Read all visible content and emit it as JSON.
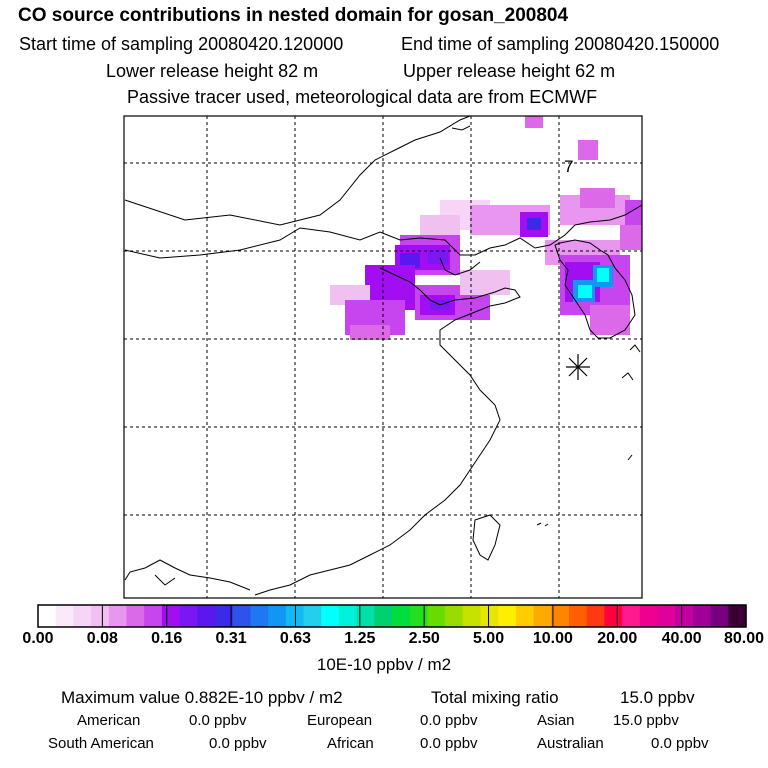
{
  "header": {
    "title": "CO  source contributions in nested domain for gosan_200804",
    "start_time": "Start time of sampling 20080420.120000",
    "end_time": "End time of sampling 20080420.150000",
    "lower_release": "Lower release height   82 m",
    "upper_release": "Upper release height   62 m",
    "tracer_note": "Passive tracer used, meteorological data are from ECMWF"
  },
  "map": {
    "marker_label": "7",
    "receptor_symbol": "asterisk"
  },
  "colorbar": {
    "colors": [
      "#ffffff",
      "#fbe9fb",
      "#f6d5f6",
      "#f0c0f0",
      "#e896ef",
      "#dc6ae8",
      "#c645ef",
      "#a10ef2",
      "#7a17f5",
      "#5b17f0",
      "#3a2be8",
      "#2f52ea",
      "#1e78f0",
      "#1296f3",
      "#14b8f2",
      "#22d0ee",
      "#00ffff",
      "#00f0d8",
      "#00e0a8",
      "#00d070",
      "#00dd3c",
      "#22e020",
      "#66dd00",
      "#99dd00",
      "#c8e200",
      "#e8e600",
      "#ffee00",
      "#ffcc00",
      "#ffaa00",
      "#ff8400",
      "#ff5f00",
      "#ff3a10",
      "#ff0040",
      "#ff1a90",
      "#f00090",
      "#e0009c",
      "#c400a0",
      "#a10098",
      "#780080",
      "#3a0035"
    ],
    "tick_labels": [
      "0.00",
      "0.08",
      "0.16",
      "0.31",
      "0.63",
      "1.25",
      "2.50",
      "5.00",
      "10.00",
      "20.00",
      "40.00",
      "80.00"
    ],
    "units": "10E-10 ppbv / m2"
  },
  "stats": {
    "max_value": "Maximum value  0.882E-10 ppbv / m2",
    "total_mixing": "Total mixing ratio",
    "total_mixing_value": "15.0 ppbv",
    "american_label": "American",
    "american_value": "0.0 ppbv",
    "european_label": "European",
    "european_value": "0.0 ppbv",
    "asian_label": "Asian",
    "asian_value": "15.0 ppbv",
    "south_american_label": "South American",
    "south_american_value": "0.0 ppbv",
    "african_label": "African",
    "african_value": "0.0 ppbv",
    "australian_label": "Australian",
    "australian_value": "0.0 ppbv"
  }
}
